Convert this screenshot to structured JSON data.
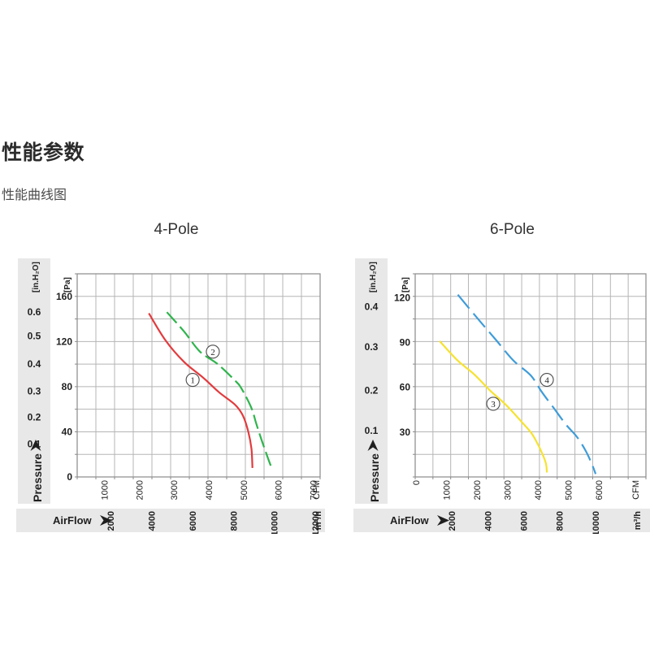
{
  "page": {
    "title": "性能参数",
    "subtitle": "性能曲线图"
  },
  "colors": {
    "strip_bg": "#e8e8e8",
    "grid": "#b5b5b5",
    "plot_border": "#8a8a8a",
    "tick_stub": "#8a8a8a",
    "text": "#1f1f1f",
    "marker_stroke": "#4a4a4a",
    "curve1": "#e23b3e",
    "curve2": "#2fb44d",
    "curve3": "#f6e231",
    "curve4": "#3f9cd8"
  },
  "chart_data": [
    {
      "type": "line",
      "title": "4-Pole",
      "y_axis": {
        "unit_outer": "[in.H₂O]",
        "unit_inner": "[Pa]",
        "axis_label": "Pressure",
        "pa_max": 180,
        "pa_ticks": [
          0,
          40,
          80,
          120,
          160
        ],
        "inh2o_ticks": [
          {
            "label": "0.6",
            "pa": 146
          },
          {
            "label": "0.5",
            "pa": 125
          },
          {
            "label": "0.4",
            "pa": 100
          },
          {
            "label": "0.3",
            "pa": 76
          },
          {
            "label": "0.2",
            "pa": 53
          },
          {
            "label": "0.1",
            "pa": 29
          }
        ]
      },
      "x_axis": {
        "axis_label": "AirFlow",
        "cfm_min": 240,
        "cfm_max": 7225,
        "cfm_ticks": [
          1000,
          2000,
          3000,
          4000,
          5000,
          6000,
          7000
        ],
        "cfm_unit": "CFM",
        "m3h_ticks": [
          2000,
          4000,
          6000,
          8000,
          10000,
          12000
        ],
        "m3h_unit": "m³/h"
      },
      "grid": {
        "cols": 13,
        "rows": 9
      },
      "series": [
        {
          "id": "curve-1",
          "marker_label": "1",
          "color_key": "curve1",
          "dash": "",
          "marker_at": {
            "cfm": 3560,
            "pa": 86
          },
          "points": [
            [
              2300,
              145
            ],
            [
              2780,
              121
            ],
            [
              3310,
              102
            ],
            [
              3860,
              88
            ],
            [
              4320,
              75
            ],
            [
              4780,
              64
            ],
            [
              5010,
              54
            ],
            [
              5160,
              40
            ],
            [
              5250,
              25
            ],
            [
              5280,
              8
            ]
          ]
        },
        {
          "id": "curve-2",
          "marker_label": "2",
          "color_key": "curve2",
          "dash": "18 6",
          "marker_at": {
            "cfm": 4140,
            "pa": 111
          },
          "points": [
            [
              2820,
              146
            ],
            [
              3310,
              129
            ],
            [
              3770,
              111
            ],
            [
              4280,
              100
            ],
            [
              4790,
              85
            ],
            [
              4970,
              78
            ],
            [
              5250,
              61
            ],
            [
              5390,
              47
            ],
            [
              5550,
              32
            ],
            [
              5710,
              18
            ],
            [
              5830,
              8
            ]
          ]
        }
      ]
    },
    {
      "type": "line",
      "title": "6-Pole",
      "y_axis": {
        "unit_outer": "[in.H₂O]",
        "unit_inner": "[Pa]",
        "axis_label": "Pressure",
        "pa_max": 136,
        "pa_ticks": [
          30,
          60,
          90,
          120
        ],
        "inh2o_ticks": [
          {
            "label": "0.4",
            "pa": 114
          },
          {
            "label": "0.3",
            "pa": 87
          },
          {
            "label": "0.2",
            "pa": 58
          },
          {
            "label": "0.1",
            "pa": 31
          }
        ]
      },
      "x_axis": {
        "axis_label": "AirFlow",
        "cfm_min": 0,
        "cfm_max": 7570,
        "cfm_ticks": [
          0,
          1000,
          2000,
          3000,
          4000,
          5000,
          6000
        ],
        "cfm_unit": "CFM",
        "m3h_ticks": [
          2000,
          4000,
          6000,
          8000,
          10000
        ],
        "m3h_unit": "m³/h"
      },
      "grid": {
        "cols": 13,
        "rows": 9
      },
      "series": [
        {
          "id": "curve-3",
          "marker_label": "3",
          "color_key": "curve3",
          "dash": "",
          "marker_at": {
            "cfm": 2560,
            "pa": 49
          },
          "points": [
            [
              800,
              91
            ],
            [
              1390,
              78
            ],
            [
              1920,
              69
            ],
            [
              2450,
              58
            ],
            [
              2990,
              48
            ],
            [
              3440,
              38
            ],
            [
              3790,
              30
            ],
            [
              3970,
              24
            ],
            [
              4160,
              16
            ],
            [
              4290,
              9
            ],
            [
              4320,
              3
            ]
          ]
        },
        {
          "id": "curve-4",
          "marker_label": "4",
          "color_key": "curve4",
          "dash": "22 8",
          "marker_at": {
            "cfm": 4320,
            "pa": 65
          },
          "points": [
            [
              1400,
              122
            ],
            [
              2050,
              106
            ],
            [
              2640,
              92
            ],
            [
              3220,
              78
            ],
            [
              3790,
              68
            ],
            [
              4150,
              57
            ],
            [
              4550,
              46
            ],
            [
              4950,
              35
            ],
            [
              5300,
              27
            ],
            [
              5580,
              18
            ],
            [
              5790,
              9
            ],
            [
              5920,
              2
            ]
          ]
        }
      ]
    }
  ]
}
